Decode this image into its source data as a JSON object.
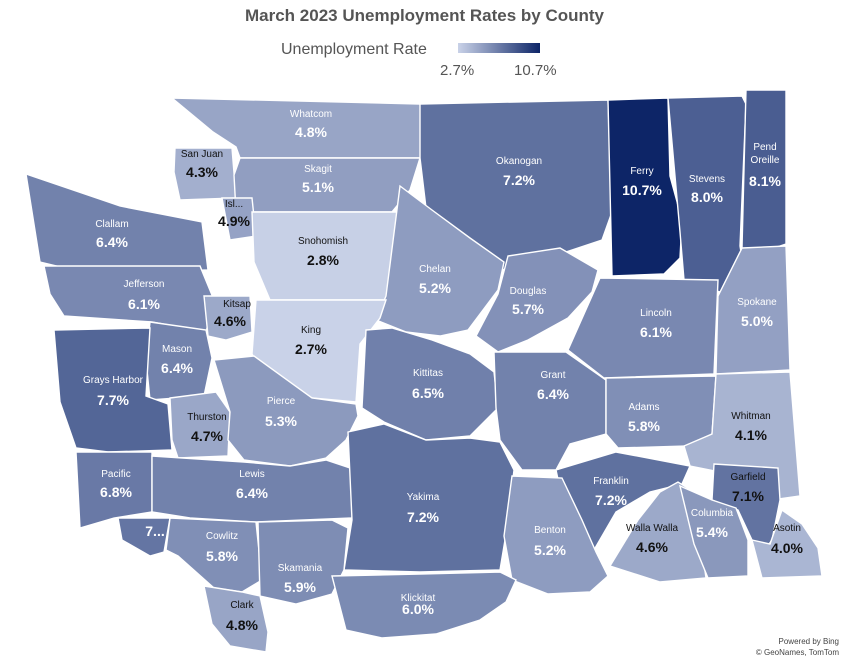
{
  "title": "March 2023 Unemployment Rates by County",
  "legend": {
    "label": "Unemployment Rate",
    "min_label": "2.7%",
    "max_label": "10.7%",
    "min_value": 2.7,
    "max_value": 10.7,
    "color_min": "#c9d2e8",
    "color_max": "#0d2567"
  },
  "counties": [
    {
      "id": "whatcom",
      "name": "Whatcom",
      "rate_label": "4.8%",
      "rate": 4.8
    },
    {
      "id": "san-juan",
      "name": "San Juan",
      "rate_label": "4.3%",
      "rate": 4.3
    },
    {
      "id": "skagit",
      "name": "Skagit",
      "rate_label": "5.1%",
      "rate": 5.1
    },
    {
      "id": "island",
      "name": "Isl...",
      "rate_label": "4.9%",
      "rate": 4.9
    },
    {
      "id": "clallam",
      "name": "Clallam",
      "rate_label": "6.4%",
      "rate": 6.4
    },
    {
      "id": "snohomish",
      "name": "Snohomish",
      "rate_label": "2.8%",
      "rate": 2.8
    },
    {
      "id": "okanogan",
      "name": "Okanogan",
      "rate_label": "7.2%",
      "rate": 7.2
    },
    {
      "id": "ferry",
      "name": "Ferry",
      "rate_label": "10.7%",
      "rate": 10.7
    },
    {
      "id": "stevens",
      "name": "Stevens",
      "rate_label": "8.0%",
      "rate": 8.0
    },
    {
      "id": "pend-oreille",
      "name": "Pend Oreille",
      "rate_label": "8.1%",
      "rate": 8.1
    },
    {
      "id": "jefferson",
      "name": "Jefferson",
      "rate_label": "6.1%",
      "rate": 6.1
    },
    {
      "id": "kitsap",
      "name": "Kitsap",
      "rate_label": "4.6%",
      "rate": 4.6
    },
    {
      "id": "chelan",
      "name": "Chelan",
      "rate_label": "5.2%",
      "rate": 5.2
    },
    {
      "id": "douglas",
      "name": "Douglas",
      "rate_label": "5.7%",
      "rate": 5.7
    },
    {
      "id": "lincoln",
      "name": "Lincoln",
      "rate_label": "6.1%",
      "rate": 6.1
    },
    {
      "id": "spokane",
      "name": "Spokane",
      "rate_label": "5.0%",
      "rate": 5.0
    },
    {
      "id": "king",
      "name": "King",
      "rate_label": "2.7%",
      "rate": 2.7
    },
    {
      "id": "mason",
      "name": "Mason",
      "rate_label": "6.4%",
      "rate": 6.4
    },
    {
      "id": "grays-harbor",
      "name": "Grays Harbor",
      "rate_label": "7.7%",
      "rate": 7.7
    },
    {
      "id": "kittitas",
      "name": "Kittitas",
      "rate_label": "6.5%",
      "rate": 6.5
    },
    {
      "id": "grant",
      "name": "Grant",
      "rate_label": "6.4%",
      "rate": 6.4
    },
    {
      "id": "adams",
      "name": "Adams",
      "rate_label": "5.8%",
      "rate": 5.8
    },
    {
      "id": "whitman",
      "name": "Whitman",
      "rate_label": "4.1%",
      "rate": 4.1
    },
    {
      "id": "thurston",
      "name": "Thurston",
      "rate_label": "4.7%",
      "rate": 4.7
    },
    {
      "id": "pierce",
      "name": "Pierce",
      "rate_label": "5.3%",
      "rate": 5.3
    },
    {
      "id": "pacific",
      "name": "Pacific",
      "rate_label": "6.8%",
      "rate": 6.8
    },
    {
      "id": "lewis",
      "name": "Lewis",
      "rate_label": "6.4%",
      "rate": 6.4
    },
    {
      "id": "yakima",
      "name": "Yakima",
      "rate_label": "7.2%",
      "rate": 7.2
    },
    {
      "id": "franklin",
      "name": "Franklin",
      "rate_label": "7.2%",
      "rate": 7.2
    },
    {
      "id": "garfield",
      "name": "Garfield",
      "rate_label": "7.1%",
      "rate": 7.1
    },
    {
      "id": "wahkiakum",
      "name": "",
      "rate_label": "7...",
      "rate": null
    },
    {
      "id": "cowlitz",
      "name": "Cowlitz",
      "rate_label": "5.8%",
      "rate": 5.8
    },
    {
      "id": "benton",
      "name": "Benton",
      "rate_label": "5.2%",
      "rate": 5.2
    },
    {
      "id": "walla-walla",
      "name": "Walla Walla",
      "rate_label": "4.6%",
      "rate": 4.6
    },
    {
      "id": "columbia",
      "name": "Columbia",
      "rate_label": "5.4%",
      "rate": 5.4
    },
    {
      "id": "asotin",
      "name": "Asotin",
      "rate_label": "4.0%",
      "rate": 4.0
    },
    {
      "id": "skamania",
      "name": "Skamania",
      "rate_label": "5.9%",
      "rate": 5.9
    },
    {
      "id": "klickitat",
      "name": "Klickitat",
      "rate_label": "6.0%",
      "rate": 6.0
    },
    {
      "id": "clark",
      "name": "Clark",
      "rate_label": "4.8%",
      "rate": 4.8
    }
  ],
  "credits": {
    "line1": "Powered by Bing",
    "line2": "© GeoNames, TomTom"
  }
}
